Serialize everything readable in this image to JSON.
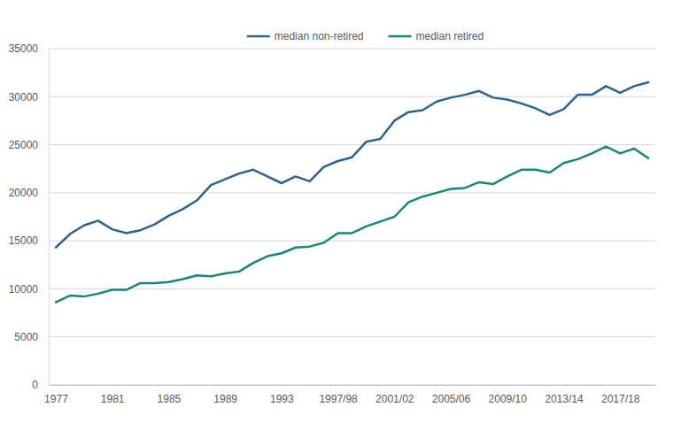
{
  "chart_data": {
    "type": "line",
    "categories": [
      "1977",
      null,
      null,
      null,
      "1981",
      null,
      null,
      null,
      "1985",
      null,
      null,
      null,
      "1989",
      null,
      null,
      null,
      "1993",
      null,
      null,
      null,
      "1997/98",
      null,
      null,
      null,
      "2001/02",
      null,
      null,
      null,
      "2005/06",
      null,
      null,
      null,
      "2009/10",
      null,
      null,
      null,
      "2013/14",
      null,
      null,
      null,
      "2017/18",
      null,
      null
    ],
    "series": [
      {
        "name": "median non-retired",
        "color": "#2b6391",
        "values": [
          14300,
          15700,
          16600,
          17100,
          16200,
          15800,
          16100,
          16700,
          17600,
          18300,
          19200,
          20800,
          21400,
          22000,
          22400,
          21700,
          21000,
          21700,
          21200,
          22700,
          23300,
          23700,
          25300,
          25600,
          27500,
          28400,
          28600,
          29500,
          29900,
          30200,
          30600,
          29900,
          29700,
          29300,
          28800,
          28100,
          28700,
          30200,
          30200,
          31100,
          30400,
          31100,
          31500
        ]
      },
      {
        "name": "median retired",
        "color": "#17877a",
        "values": [
          8600,
          9300,
          9200,
          9500,
          9900,
          9900,
          10600,
          10600,
          10700,
          11000,
          11400,
          11300,
          11600,
          11800,
          12700,
          13400,
          13700,
          14300,
          14400,
          14800,
          15800,
          15800,
          16500,
          17000,
          17500,
          19000,
          19600,
          20000,
          20400,
          20500,
          21100,
          20900,
          21700,
          22400,
          22400,
          22100,
          23100,
          23500,
          24100,
          24800,
          24100,
          24600,
          23600
        ]
      }
    ],
    "ylim": [
      0,
      35000
    ],
    "yticks": [
      0,
      5000,
      10000,
      15000,
      20000,
      25000,
      30000,
      35000
    ],
    "grid": true,
    "legend": "top"
  }
}
